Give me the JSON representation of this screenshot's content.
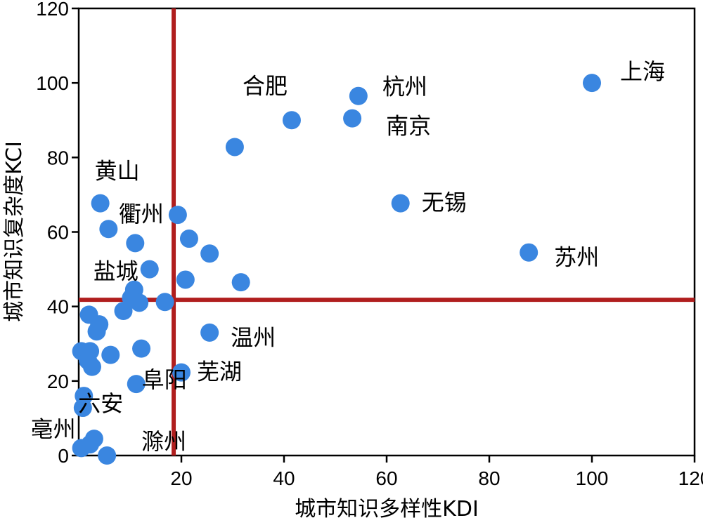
{
  "chart_data": {
    "type": "scatter",
    "xlabel": "城市知识多样性KDI",
    "ylabel": "城市知识复杂度KCI",
    "xlim": [
      0,
      120
    ],
    "ylim": [
      0,
      120
    ],
    "xticks": [
      20,
      40,
      60,
      80,
      100,
      120
    ],
    "yticks": [
      0,
      20,
      40,
      60,
      80,
      100,
      120
    ],
    "grid": false,
    "colors": {
      "point": "#3a86e0",
      "reference_line": "#b01e1e"
    },
    "reference_lines": {
      "x": 18.5,
      "y": 41.8
    },
    "points": [
      {
        "x": 100,
        "y": 100,
        "label": "上海"
      },
      {
        "x": 54.5,
        "y": 96.5,
        "label": "杭州"
      },
      {
        "x": 53.3,
        "y": 90.5,
        "label": "南京"
      },
      {
        "x": 41.5,
        "y": 90,
        "label": "合肥"
      },
      {
        "x": 62.7,
        "y": 67.7,
        "label": "无锡"
      },
      {
        "x": 87.7,
        "y": 54.5,
        "label": "苏州"
      },
      {
        "x": 4.2,
        "y": 67.7,
        "label": "黄山"
      },
      {
        "x": 19.3,
        "y": 64.6,
        "label": "衢州"
      },
      {
        "x": 13.8,
        "y": 50,
        "label": "盐城"
      },
      {
        "x": 25.5,
        "y": 33,
        "label": "温州"
      },
      {
        "x": 20,
        "y": 22.3,
        "label": "芜湖"
      },
      {
        "x": 1,
        "y": 16,
        "label": "六安"
      },
      {
        "x": 11.2,
        "y": 19.2,
        "label": "阜阳"
      },
      {
        "x": 5.5,
        "y": 0,
        "label": "滁州"
      },
      {
        "x": 0.5,
        "y": 2,
        "label": "亳州"
      },
      {
        "x": 30.4,
        "y": 82.8,
        "label": ""
      },
      {
        "x": 5.8,
        "y": 60.8,
        "label": ""
      },
      {
        "x": 11,
        "y": 57,
        "label": ""
      },
      {
        "x": 21.5,
        "y": 58.2,
        "label": ""
      },
      {
        "x": 25.5,
        "y": 54.2,
        "label": ""
      },
      {
        "x": 20.8,
        "y": 47.2,
        "label": ""
      },
      {
        "x": 31.6,
        "y": 46.5,
        "label": ""
      },
      {
        "x": 10.8,
        "y": 44.5,
        "label": ""
      },
      {
        "x": 10.2,
        "y": 42.3,
        "label": ""
      },
      {
        "x": 11.8,
        "y": 41,
        "label": ""
      },
      {
        "x": 16.8,
        "y": 41.2,
        "label": ""
      },
      {
        "x": 8.7,
        "y": 38.8,
        "label": ""
      },
      {
        "x": 2,
        "y": 37.8,
        "label": ""
      },
      {
        "x": 4,
        "y": 35.2,
        "label": ""
      },
      {
        "x": 3.5,
        "y": 33.3,
        "label": ""
      },
      {
        "x": 12.2,
        "y": 28.7,
        "label": ""
      },
      {
        "x": 6.2,
        "y": 27,
        "label": ""
      },
      {
        "x": 0.5,
        "y": 28,
        "label": ""
      },
      {
        "x": 2.2,
        "y": 28,
        "label": ""
      },
      {
        "x": 1.8,
        "y": 25.5,
        "label": ""
      },
      {
        "x": 2.6,
        "y": 23.8,
        "label": ""
      },
      {
        "x": 0.8,
        "y": 12.8,
        "label": ""
      },
      {
        "x": 3,
        "y": 4.5,
        "label": ""
      },
      {
        "x": 2.2,
        "y": 3,
        "label": ""
      }
    ]
  }
}
